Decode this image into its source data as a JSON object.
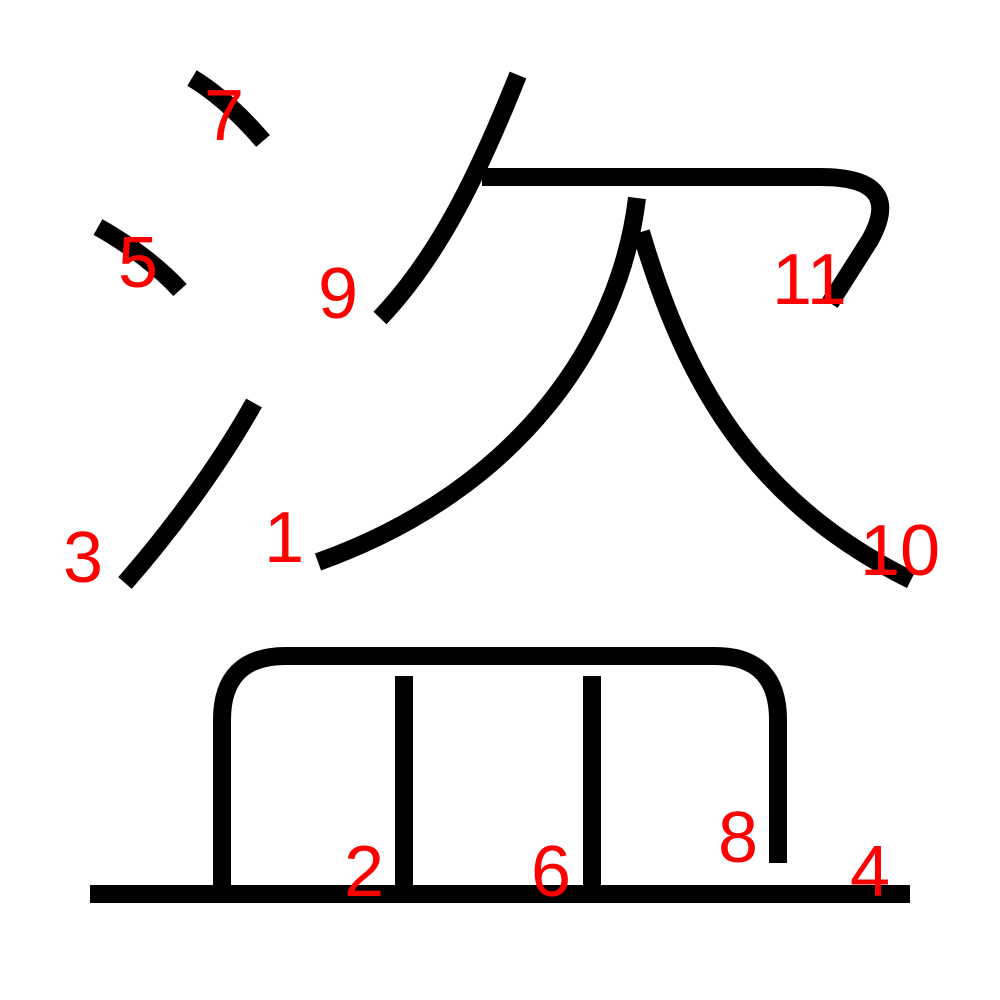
{
  "character": "盜",
  "colors": {
    "background": "#ffffff",
    "stroke": "#000000",
    "label": "#ff0000"
  },
  "strokes": [
    {
      "order": 1,
      "label": "1"
    },
    {
      "order": 2,
      "label": "2"
    },
    {
      "order": 3,
      "label": "3"
    },
    {
      "order": 4,
      "label": "4"
    },
    {
      "order": 5,
      "label": "5"
    },
    {
      "order": 6,
      "label": "6"
    },
    {
      "order": 7,
      "label": "7"
    },
    {
      "order": 8,
      "label": "8"
    },
    {
      "order": 9,
      "label": "9"
    },
    {
      "order": 10,
      "label": "10"
    },
    {
      "order": 11,
      "label": "11"
    }
  ]
}
